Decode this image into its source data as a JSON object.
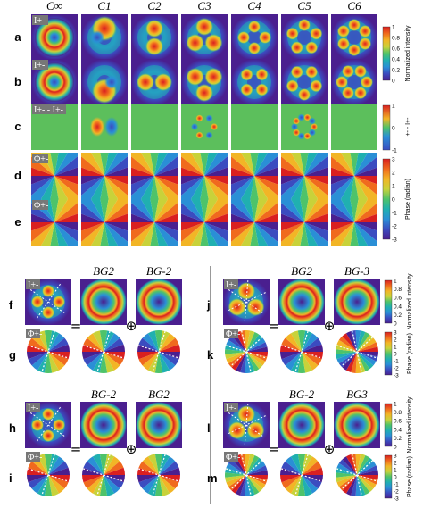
{
  "top": {
    "col_headers": [
      "C∞",
      "C1",
      "C2",
      "C3",
      "C4",
      "C5",
      "C6"
    ],
    "row_labels": [
      "a",
      "b",
      "c",
      "d",
      "e"
    ],
    "tags": [
      "I+-",
      "I+-",
      "I+- - I+-",
      "Φ+-",
      "Φ+-"
    ],
    "cb_intensity": {
      "title": "Normalized intensity",
      "ticks": [
        "1",
        "0.8",
        "0.6",
        "0.4",
        "0.2",
        "0"
      ]
    },
    "cb_diff": {
      "title": "I+- - I+-",
      "ticks": [
        "1",
        "0",
        "-1"
      ]
    },
    "cb_phase": {
      "title": "Phase (radian)",
      "ticks": [
        "3",
        "2",
        "1",
        "0",
        "-1",
        "-2",
        "-3"
      ]
    }
  },
  "bottom": {
    "panels": [
      {
        "lab": "f",
        "sub": "g",
        "h1": "BG2",
        "h2": "BG-2",
        "tag_i": "I+-",
        "tag_p": "Φ+-"
      },
      {
        "lab": "j",
        "sub": "k",
        "h1": "BG2",
        "h2": "BG-3",
        "tag_i": "I+-",
        "tag_p": "Φ+-"
      },
      {
        "lab": "h",
        "sub": "i",
        "h1": "BG-2",
        "h2": "BG2",
        "tag_i": "I+-",
        "tag_p": "Φ+-"
      },
      {
        "lab": "l",
        "sub": "m",
        "h1": "BG-2",
        "h2": "BG3",
        "tag_i": "I+-",
        "tag_p": "Φ+-"
      }
    ],
    "equals": "=",
    "oplus": "⊕",
    "cb_int_title": "Normalized intensity",
    "cb_int_ticks": [
      "1",
      "0.8",
      "0.6",
      "0.4",
      "0.2",
      "0"
    ],
    "cb_ph_title": "Phase (radian)",
    "cb_ph_ticks": [
      "3",
      "2",
      "1",
      "0",
      "-1",
      "-2",
      "-3"
    ]
  },
  "colors": {
    "low": "#4a1f8f",
    "mid": "#20b0b0",
    "high": "#d92020"
  }
}
